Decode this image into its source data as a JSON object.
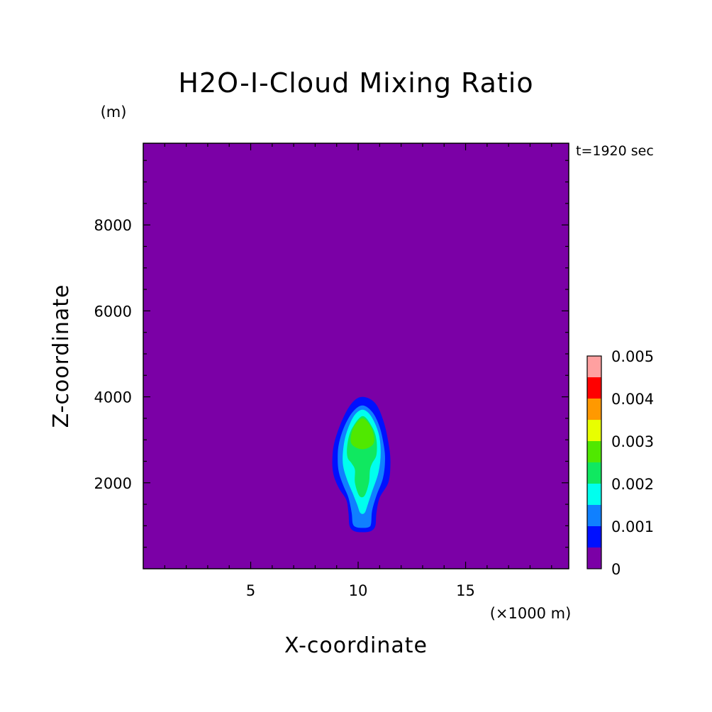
{
  "chart_data": {
    "type": "heatmap",
    "title": "H2O-I-Cloud Mixing Ratio",
    "xlabel": "X-coordinate",
    "ylabel": "Z-coordinate",
    "x_unit": "(×1000 m)",
    "y_unit": "(m)",
    "time_label": "t=1920 sec",
    "xlim": [
      0,
      19.8
    ],
    "ylim": [
      0,
      9900
    ],
    "x_ticks": [
      5,
      10,
      15
    ],
    "y_ticks": [
      2000,
      4000,
      6000,
      8000
    ],
    "grid": false,
    "background_color": "#7b00a6",
    "colorbar": {
      "levels": [
        0,
        0.0005,
        0.001,
        0.0015,
        0.002,
        0.0025,
        0.003,
        0.0035,
        0.004,
        0.0045,
        0.005
      ],
      "labels": [
        "0",
        "0.001",
        "0.002",
        "0.003",
        "0.004",
        "0.005"
      ],
      "label_values": [
        0,
        0.001,
        0.002,
        0.003,
        0.004,
        0.005
      ],
      "colors": [
        "#7b00a6",
        "#0010ff",
        "#1080ff",
        "#00ffee",
        "#10e860",
        "#50e800",
        "#e8ff00",
        "#ff9900",
        "#ff0000",
        "#ffa0a0"
      ],
      "placement": "right"
    },
    "contours": [
      {
        "level": 0.0005,
        "color": "#0010ff",
        "x": [
          10.2,
          9.7,
          9.25,
          8.9,
          8.8,
          8.85,
          9.1,
          9.45,
          9.55,
          9.6,
          9.8,
          10.2,
          10.6,
          10.8,
          10.85,
          11.0,
          11.4,
          11.5,
          11.45,
          11.2,
          10.8
        ],
        "z": [
          4000,
          3850,
          3450,
          2950,
          2550,
          2200,
          1880,
          1600,
          1300,
          1000,
          880,
          850,
          880,
          1000,
          1300,
          1650,
          2000,
          2400,
          2800,
          3400,
          3850
        ]
      },
      {
        "level": 0.001,
        "color": "#1080ff",
        "x": [
          10.2,
          9.75,
          9.35,
          9.1,
          9.05,
          9.1,
          9.3,
          9.55,
          9.7,
          9.75,
          9.9,
          10.2,
          10.5,
          10.6,
          10.65,
          10.85,
          11.15,
          11.25,
          11.2,
          11.0,
          10.65
        ],
        "z": [
          3800,
          3650,
          3300,
          2900,
          2550,
          2250,
          1950,
          1650,
          1300,
          1050,
          970,
          950,
          970,
          1050,
          1350,
          1700,
          2100,
          2500,
          2850,
          3300,
          3650
        ]
      },
      {
        "level": 0.0015,
        "color": "#00ffee",
        "x": [
          10.2,
          9.8,
          9.45,
          9.3,
          9.3,
          9.5,
          9.75,
          9.95,
          10.1,
          10.3,
          10.45,
          10.65,
          10.95,
          11.05,
          10.95,
          10.6
        ],
        "z": [
          3700,
          3550,
          3150,
          2750,
          2400,
          2050,
          1750,
          1500,
          1300,
          1300,
          1500,
          1800,
          2250,
          2700,
          3150,
          3550
        ]
      },
      {
        "level": 0.002,
        "color": "#10e860",
        "x": [
          10.2,
          9.7,
          9.5,
          9.5,
          9.7,
          9.85,
          9.85,
          10.05,
          10.3,
          10.5,
          10.55,
          10.65,
          10.85,
          10.85,
          10.65
        ],
        "z": [
          3550,
          3250,
          2900,
          2600,
          2450,
          2300,
          2000,
          1700,
          1700,
          2000,
          2300,
          2450,
          2650,
          3000,
          3300
        ]
      },
      {
        "level": 0.0025,
        "color": "#50e800",
        "x": [
          10.2,
          9.8,
          9.65,
          9.8,
          10.2,
          10.6,
          10.75,
          10.6
        ],
        "z": [
          3500,
          3300,
          3000,
          2850,
          2780,
          2850,
          3000,
          3300
        ]
      }
    ]
  }
}
